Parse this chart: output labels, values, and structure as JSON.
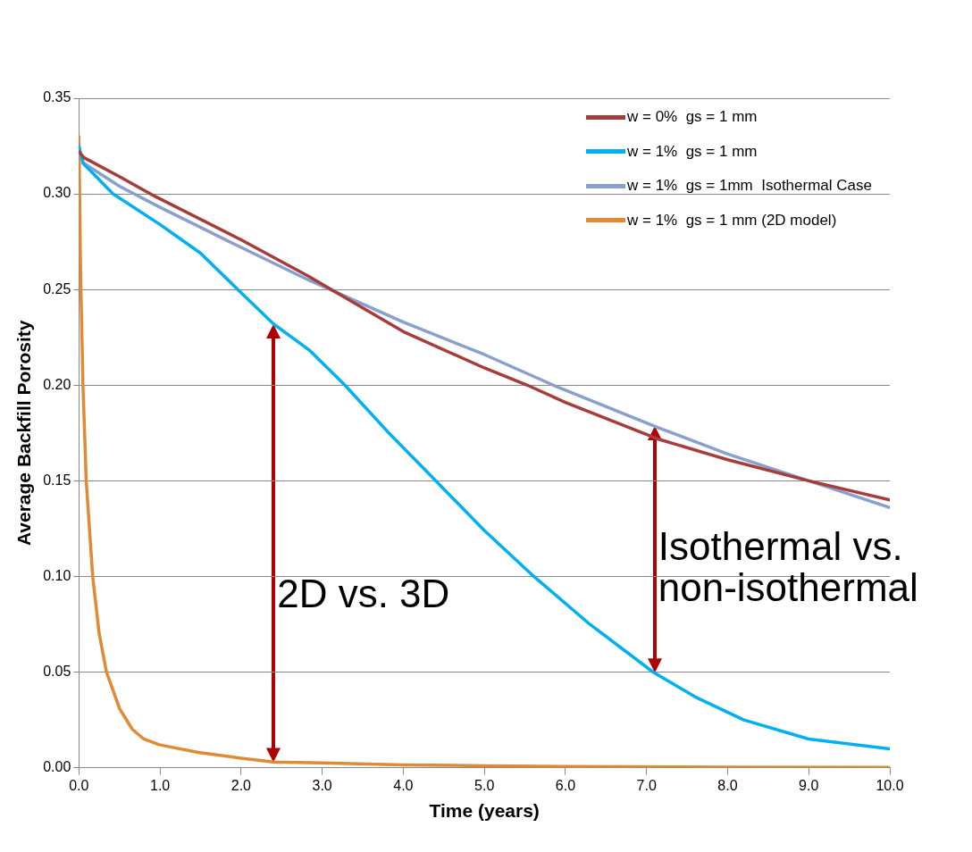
{
  "chart_data": {
    "type": "line",
    "xlabel": "Time (years)",
    "ylabel": "Average Backfill Porosity",
    "xlim": [
      0,
      10
    ],
    "ylim": [
      0,
      0.35
    ],
    "xticks": [
      {
        "value": 0,
        "label": "0.0"
      },
      {
        "value": 1,
        "label": "1.0"
      },
      {
        "value": 2,
        "label": "2.0"
      },
      {
        "value": 3,
        "label": "3.0"
      },
      {
        "value": 4,
        "label": "4.0"
      },
      {
        "value": 5,
        "label": "5.0"
      },
      {
        "value": 6,
        "label": "6.0"
      },
      {
        "value": 7,
        "label": "7.0"
      },
      {
        "value": 8,
        "label": "8.0"
      },
      {
        "value": 9,
        "label": "9.0"
      },
      {
        "value": 10,
        "label": "10.0"
      }
    ],
    "yticks": [
      {
        "value": 0,
        "label": "0.00"
      },
      {
        "value": 0.05,
        "label": "0.05"
      },
      {
        "value": 0.1,
        "label": "0.10"
      },
      {
        "value": 0.15,
        "label": "0.15"
      },
      {
        "value": 0.2,
        "label": "0.20"
      },
      {
        "value": 0.25,
        "label": "0.25"
      },
      {
        "value": 0.3,
        "label": "0.30"
      },
      {
        "value": 0.35,
        "label": "0.35"
      }
    ],
    "grid": "y",
    "legend": "top right",
    "marker": "none",
    "line_style": "solid",
    "series": [
      {
        "name": "w = 0%  gs = 1 mm",
        "color": "#a63d3a",
        "x": [
          0,
          0.06,
          0.5,
          0.88,
          2,
          2.83,
          4,
          5,
          5.53,
          6,
          7.13,
          8,
          9,
          10
        ],
        "values": [
          0.322,
          0.319,
          0.309,
          0.3,
          0.276,
          0.257,
          0.228,
          0.209,
          0.2,
          0.191,
          0.172,
          0.161,
          0.15,
          0.14
        ]
      },
      {
        "name": "w = 1%  gs = 1 mm",
        "color": "#00b0f0",
        "x": [
          0,
          0.05,
          0.42,
          1,
          1.5,
          1.96,
          2.4,
          2.85,
          3.28,
          3.8,
          4.4,
          5,
          5.61,
          6.3,
          7.08,
          7.6,
          8.2,
          9,
          10
        ],
        "values": [
          0.325,
          0.316,
          0.3,
          0.284,
          0.269,
          0.25,
          0.232,
          0.218,
          0.2,
          0.176,
          0.15,
          0.124,
          0.1,
          0.075,
          0.05,
          0.037,
          0.025,
          0.015,
          0.0098
        ]
      },
      {
        "name": "w = 1%  gs = 1mm  Isothermal Case",
        "color": "#8aa0cc",
        "x": [
          0,
          0.06,
          0.5,
          1,
          2,
          2.83,
          4,
          5,
          5.85,
          7.13,
          8,
          9,
          10
        ],
        "values": [
          0.322,
          0.316,
          0.304,
          0.293,
          0.272,
          0.255,
          0.233,
          0.216,
          0.2,
          0.178,
          0.164,
          0.15,
          0.136
        ]
      },
      {
        "name": "w = 1%  gs = 1 mm (2D model)",
        "color": "#e08a34",
        "x": [
          0,
          0.02,
          0.05,
          0.09,
          0.17,
          0.25,
          0.34,
          0.5,
          0.66,
          0.8,
          0.99,
          1.47,
          2,
          2.4,
          3,
          4,
          5,
          6,
          8,
          10
        ],
        "values": [
          0.33,
          0.26,
          0.2,
          0.15,
          0.1,
          0.07,
          0.05,
          0.031,
          0.02,
          0.015,
          0.012,
          0.008,
          0.005,
          0.003,
          0.0025,
          0.0015,
          0.001,
          0.0006,
          0.0003,
          0.0002
        ]
      }
    ],
    "annotations": [
      "2D vs. 3D",
      "Isothermal vs.\nnon-isothermal"
    ]
  }
}
